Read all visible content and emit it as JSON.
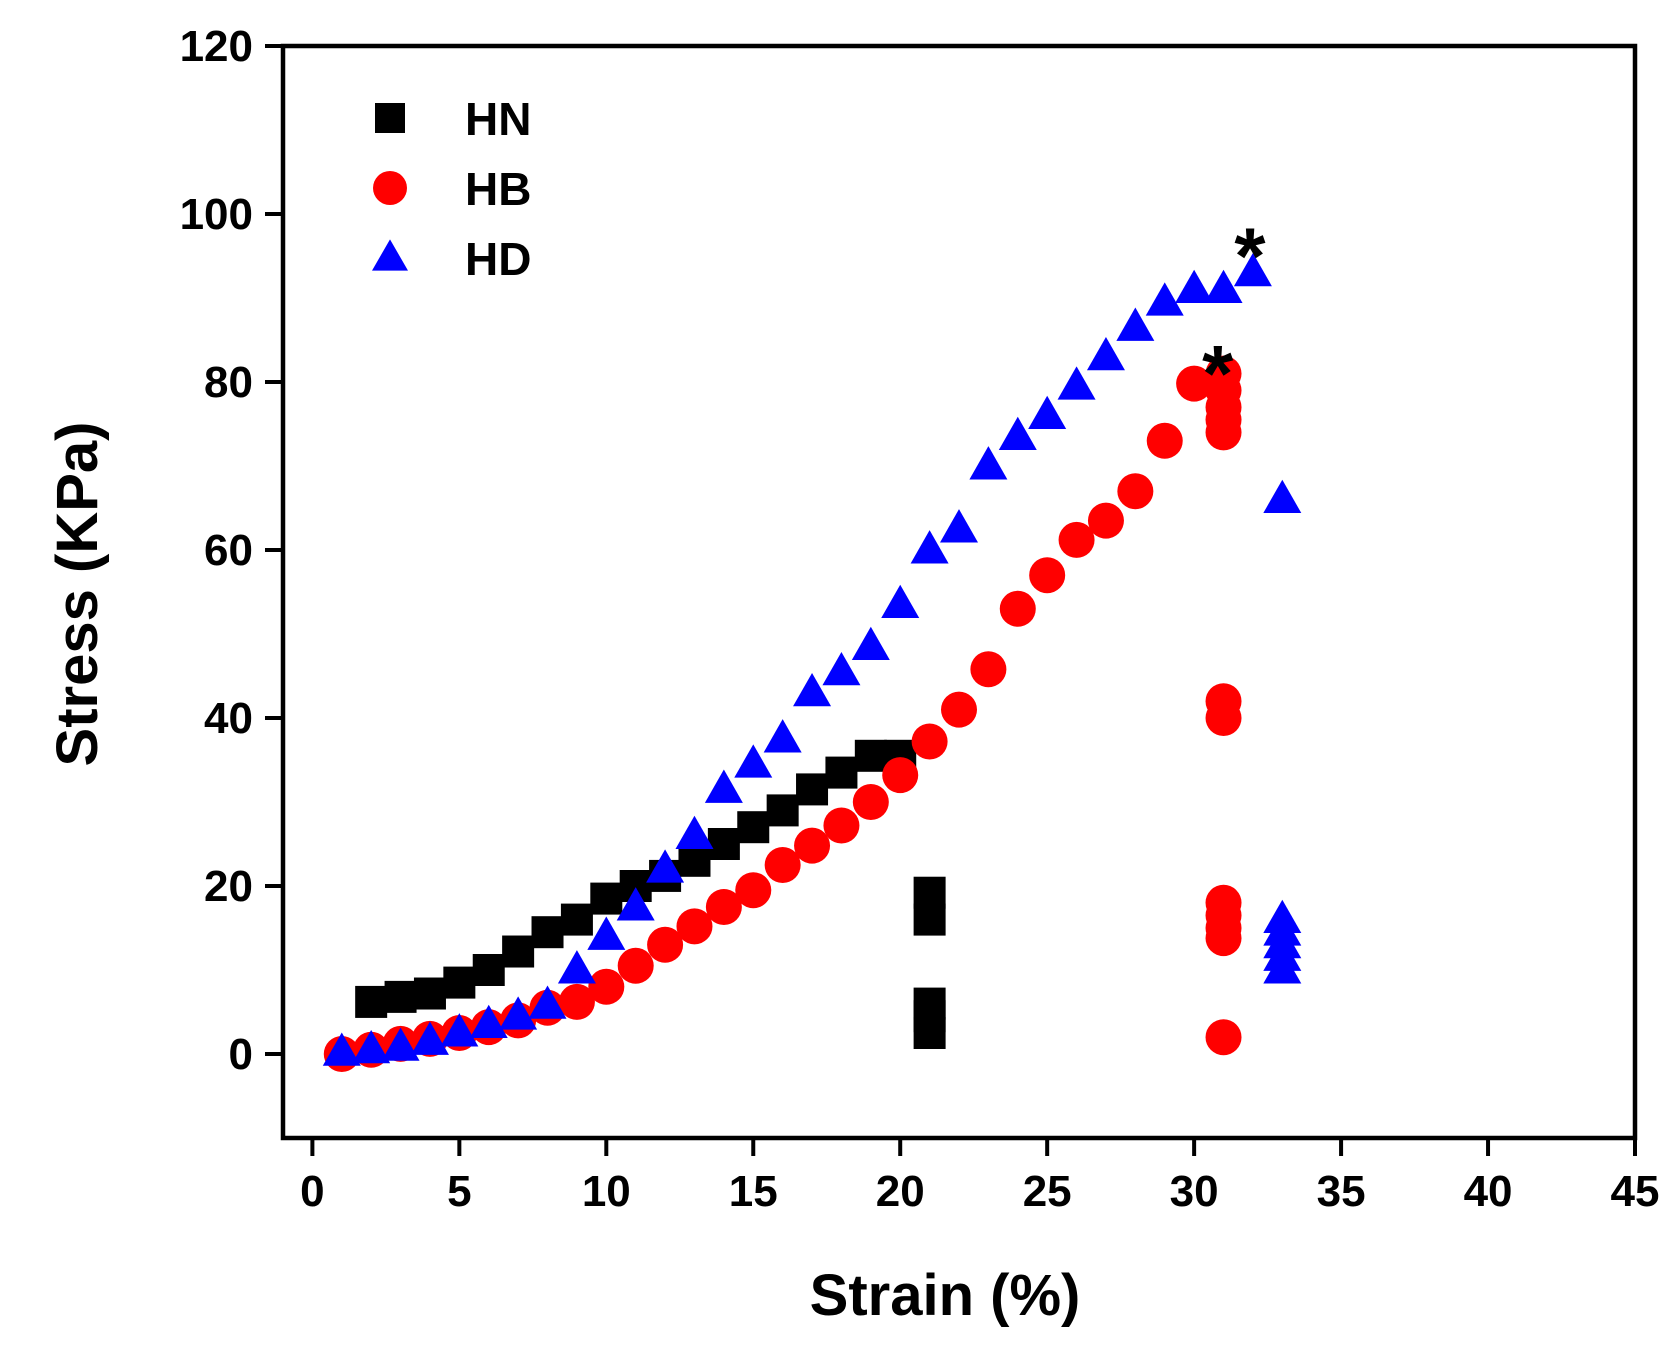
{
  "chart_data": {
    "type": "scatter",
    "title": "",
    "xlabel": "Strain (%)",
    "ylabel": "Stress (KPa)",
    "xlim": [
      -1,
      45
    ],
    "ylim": [
      -10,
      120
    ],
    "xticks": [
      0,
      5,
      10,
      15,
      20,
      25,
      30,
      35,
      40,
      45
    ],
    "yticks": [
      0,
      20,
      40,
      60,
      80,
      100,
      120
    ],
    "grid": false,
    "legend_position": "top-left",
    "series": [
      {
        "name": "HN",
        "marker": "square",
        "color": "#000000",
        "points": [
          [
            2,
            6.2
          ],
          [
            3,
            6.8
          ],
          [
            4,
            7.2
          ],
          [
            5,
            8.5
          ],
          [
            6,
            10
          ],
          [
            7,
            12.2
          ],
          [
            8,
            14.5
          ],
          [
            9,
            16
          ],
          [
            10,
            18.5
          ],
          [
            11,
            20
          ],
          [
            12,
            21.2
          ],
          [
            13,
            23
          ],
          [
            14,
            25
          ],
          [
            15,
            27
          ],
          [
            16,
            29
          ],
          [
            17,
            31.5
          ],
          [
            18,
            33.5
          ],
          [
            19,
            35.5
          ],
          [
            20,
            35.5
          ],
          [
            21,
            19.2
          ],
          [
            21,
            16
          ],
          [
            21,
            6
          ],
          [
            21,
            4.5
          ],
          [
            21,
            2.5
          ]
        ]
      },
      {
        "name": "HB",
        "marker": "circle",
        "color": "#ff0000",
        "points": [
          [
            1,
            0
          ],
          [
            2,
            0.5
          ],
          [
            3,
            1.2
          ],
          [
            4,
            1.8
          ],
          [
            5,
            2.5
          ],
          [
            6,
            3.2
          ],
          [
            7,
            4
          ],
          [
            8,
            5.5
          ],
          [
            9,
            6.2
          ],
          [
            10,
            8
          ],
          [
            11,
            10.5
          ],
          [
            12,
            13
          ],
          [
            13,
            15.2
          ],
          [
            14,
            17.5
          ],
          [
            15,
            19.5
          ],
          [
            16,
            22.5
          ],
          [
            17,
            24.8
          ],
          [
            18,
            27.2
          ],
          [
            19,
            30
          ],
          [
            20,
            33.2
          ],
          [
            21,
            37.2
          ],
          [
            22,
            41
          ],
          [
            23,
            45.8
          ],
          [
            24,
            53
          ],
          [
            25,
            57
          ],
          [
            26,
            61.2
          ],
          [
            27,
            63.5
          ],
          [
            28,
            67
          ],
          [
            29,
            73
          ],
          [
            30,
            79.8
          ],
          [
            31,
            81
          ],
          [
            31,
            79
          ],
          [
            31,
            77
          ],
          [
            31,
            75.5
          ],
          [
            31,
            74
          ],
          [
            31,
            42
          ],
          [
            31,
            40
          ],
          [
            31,
            18
          ],
          [
            31,
            16.5
          ],
          [
            31,
            15
          ],
          [
            31,
            13.8
          ],
          [
            31,
            2
          ]
        ]
      },
      {
        "name": "HD",
        "marker": "triangle",
        "color": "#0000ff",
        "points": [
          [
            1,
            0.2
          ],
          [
            2,
            0.5
          ],
          [
            3,
            0.8
          ],
          [
            4,
            1.5
          ],
          [
            5,
            2.5
          ],
          [
            6,
            3.5
          ],
          [
            7,
            4.5
          ],
          [
            8,
            5.8
          ],
          [
            9,
            10
          ],
          [
            10,
            14
          ],
          [
            11,
            17.5
          ],
          [
            12,
            22
          ],
          [
            13,
            26
          ],
          [
            14,
            31.5
          ],
          [
            15,
            34.5
          ],
          [
            16,
            37.5
          ],
          [
            17,
            43
          ],
          [
            18,
            45.5
          ],
          [
            19,
            48.5
          ],
          [
            20,
            53.5
          ],
          [
            21,
            60
          ],
          [
            22,
            62.5
          ],
          [
            23,
            70
          ],
          [
            24,
            73.5
          ],
          [
            25,
            76
          ],
          [
            26,
            79.5
          ],
          [
            27,
            83
          ],
          [
            28,
            86.5
          ],
          [
            29,
            89.5
          ],
          [
            30,
            91
          ],
          [
            31,
            91
          ],
          [
            32,
            93
          ],
          [
            33,
            66
          ],
          [
            33,
            16
          ],
          [
            33,
            14.5
          ],
          [
            33,
            13
          ],
          [
            33,
            11.5
          ],
          [
            33,
            10
          ]
        ]
      }
    ],
    "annotations": [
      {
        "text": "*",
        "x": 31.9,
        "y": 96.5
      },
      {
        "text": "*",
        "x": 30.8,
        "y": 82.5
      }
    ]
  }
}
